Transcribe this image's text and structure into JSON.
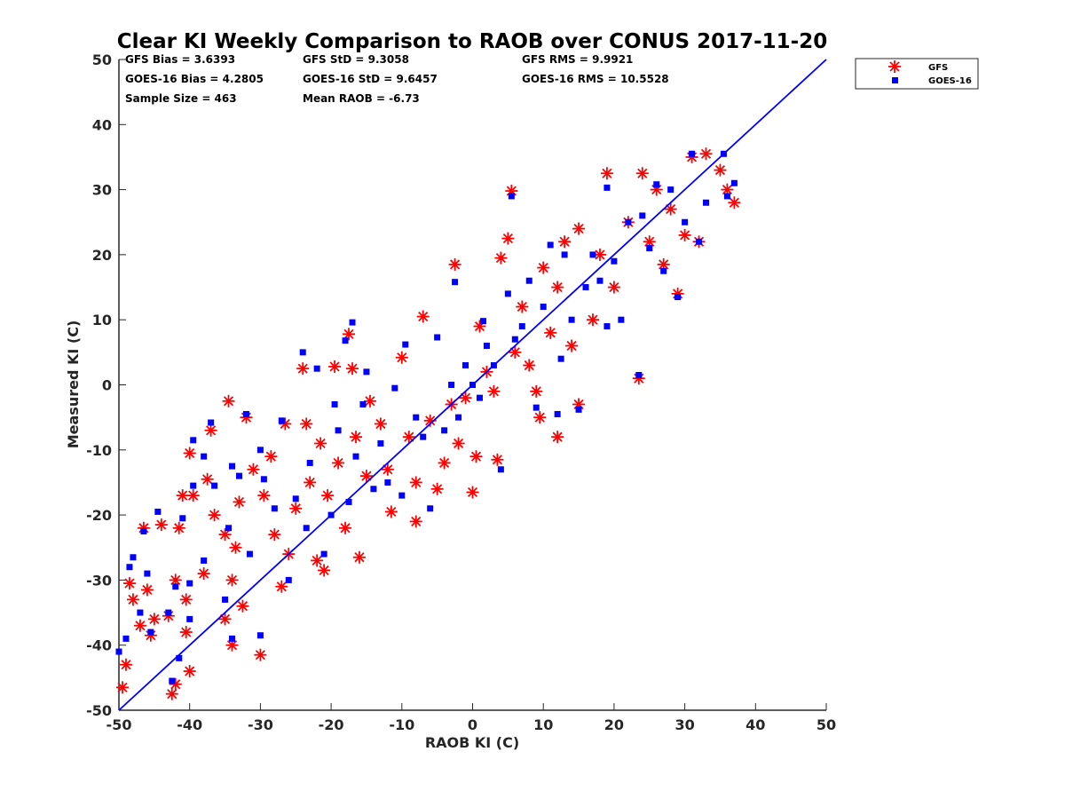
{
  "chart_data": {
    "type": "scatter",
    "title": "Clear KI Weekly Comparison to RAOB over CONUS 2017-11-20",
    "xlabel": "RAOB KI (C)",
    "ylabel": "Measured KI (C)",
    "xlim": [
      -50,
      50
    ],
    "ylim": [
      -50,
      50
    ],
    "xticks": [
      "-50",
      "-40",
      "-30",
      "-20",
      "-10",
      "0",
      "10",
      "20",
      "30",
      "40",
      "50"
    ],
    "yticks": [
      "-50",
      "-40",
      "-30",
      "-20",
      "-10",
      "0",
      "10",
      "20",
      "30",
      "40",
      "50"
    ],
    "grid": false,
    "legend_position": "top-right",
    "reference_line": {
      "label": "1:1",
      "color": "#0000ff"
    },
    "stats": [
      "GFS Bias = 3.6393",
      "GFS StD = 9.3058",
      "GFS RMS = 9.9921",
      "GOES-16 Bias = 4.2805",
      "GOES-16 StD = 9.6457",
      "GOES-16 RMS = 10.5528",
      "Sample Size = 463",
      "Mean RAOB = -6.73"
    ],
    "series": [
      {
        "name": "GFS",
        "color": "#ff0000",
        "marker": "asterisk",
        "points": [
          [
            -49.5,
            -46.5
          ],
          [
            -49,
            -43
          ],
          [
            -48.5,
            -30.5
          ],
          [
            -48,
            -33
          ],
          [
            -47,
            -37
          ],
          [
            -46.5,
            -22
          ],
          [
            -46,
            -31.5
          ],
          [
            -45.5,
            -38.5
          ],
          [
            -45,
            -36
          ],
          [
            -44,
            -21.5
          ],
          [
            -43,
            -35.5
          ],
          [
            -42.5,
            -47.5
          ],
          [
            -42,
            -46
          ],
          [
            -42,
            -30
          ],
          [
            -41.5,
            -22
          ],
          [
            -41,
            -17
          ],
          [
            -40.5,
            -33
          ],
          [
            -40.5,
            -38
          ],
          [
            -40,
            -44
          ],
          [
            -40,
            -10.5
          ],
          [
            -39.5,
            -17
          ],
          [
            -38,
            -29
          ],
          [
            -37.5,
            -14.5
          ],
          [
            -37,
            -7
          ],
          [
            -36.5,
            -20
          ],
          [
            -35,
            -36
          ],
          [
            -35,
            -23
          ],
          [
            -34.5,
            -2.5
          ],
          [
            -34,
            -40
          ],
          [
            -34,
            -30
          ],
          [
            -33.5,
            -25
          ],
          [
            -33,
            -18
          ],
          [
            -32.5,
            -34
          ],
          [
            -32,
            -5
          ],
          [
            -31,
            -13
          ],
          [
            -30,
            -41.5
          ],
          [
            -29.5,
            -17
          ],
          [
            -28.5,
            -11
          ],
          [
            -28,
            -23
          ],
          [
            -27,
            -31
          ],
          [
            -26.5,
            -6
          ],
          [
            -26,
            -26
          ],
          [
            -25,
            -19
          ],
          [
            -24,
            2.5
          ],
          [
            -23.5,
            -6
          ],
          [
            -23,
            -15
          ],
          [
            -22,
            -27
          ],
          [
            -21.5,
            -9
          ],
          [
            -21,
            -28.5
          ],
          [
            -20.5,
            -17
          ],
          [
            -19.5,
            2.8
          ],
          [
            -19,
            -12
          ],
          [
            -18,
            -22
          ],
          [
            -17.5,
            7.8
          ],
          [
            -17,
            2.5
          ],
          [
            -16.5,
            -8
          ],
          [
            -16,
            -26.5
          ],
          [
            -15,
            -14
          ],
          [
            -14.5,
            -2.5
          ],
          [
            -13,
            -6
          ],
          [
            -12,
            -13
          ],
          [
            -11.5,
            -19.5
          ],
          [
            -10,
            4.2
          ],
          [
            -9,
            -8
          ],
          [
            -8,
            -15
          ],
          [
            -8,
            -21
          ],
          [
            -7,
            10.5
          ],
          [
            -6,
            -5.5
          ],
          [
            -5,
            -16
          ],
          [
            -4,
            -12
          ],
          [
            -3,
            -3
          ],
          [
            -2.5,
            18.5
          ],
          [
            -2,
            -9
          ],
          [
            -1,
            -2
          ],
          [
            0,
            -16.5
          ],
          [
            0.5,
            -11
          ],
          [
            1,
            9
          ],
          [
            2,
            2
          ],
          [
            3,
            -1
          ],
          [
            3.5,
            -11.5
          ],
          [
            4,
            19.5
          ],
          [
            5,
            22.5
          ],
          [
            5.5,
            29.8
          ],
          [
            6,
            5
          ],
          [
            7,
            12
          ],
          [
            8,
            3
          ],
          [
            9,
            -1
          ],
          [
            9.5,
            -5
          ],
          [
            10,
            18
          ],
          [
            11,
            8
          ],
          [
            12,
            -8
          ],
          [
            12,
            15
          ],
          [
            13,
            22
          ],
          [
            14,
            6
          ],
          [
            15,
            -3
          ],
          [
            15,
            24
          ],
          [
            17,
            10
          ],
          [
            18,
            20
          ],
          [
            19,
            32.5
          ],
          [
            20,
            15
          ],
          [
            22,
            25
          ],
          [
            23.5,
            1
          ],
          [
            24,
            32.5
          ],
          [
            25,
            22
          ],
          [
            26,
            30
          ],
          [
            27,
            18.5
          ],
          [
            28,
            27
          ],
          [
            29,
            14
          ],
          [
            30,
            23
          ],
          [
            31,
            35
          ],
          [
            32,
            22
          ],
          [
            33,
            35.5
          ],
          [
            35,
            33
          ],
          [
            36,
            30
          ],
          [
            37,
            28
          ]
        ]
      },
      {
        "name": "GOES-16",
        "color": "#0000ff",
        "marker": "square",
        "points": [
          [
            -50,
            -41
          ],
          [
            -49,
            -39
          ],
          [
            -48.5,
            -28
          ],
          [
            -48,
            -26.5
          ],
          [
            -47,
            -35
          ],
          [
            -46.5,
            -22.5
          ],
          [
            -46,
            -29
          ],
          [
            -45.5,
            -38
          ],
          [
            -44.5,
            -19.5
          ],
          [
            -43,
            -35
          ],
          [
            -42.5,
            -45.5
          ],
          [
            -42,
            -31
          ],
          [
            -41.5,
            -42
          ],
          [
            -41,
            -20.5
          ],
          [
            -40,
            -36
          ],
          [
            -40,
            -30.5
          ],
          [
            -39.5,
            -8.5
          ],
          [
            -39.5,
            -15.5
          ],
          [
            -38,
            -27
          ],
          [
            -38,
            -11
          ],
          [
            -37,
            -5.8
          ],
          [
            -36.5,
            -15.5
          ],
          [
            -35,
            -33
          ],
          [
            -34.5,
            -22
          ],
          [
            -34,
            -39
          ],
          [
            -34,
            -12.5
          ],
          [
            -33,
            -14
          ],
          [
            -32,
            -4.5
          ],
          [
            -31.5,
            -26
          ],
          [
            -30,
            -38.5
          ],
          [
            -30,
            -10
          ],
          [
            -29.5,
            -14.5
          ],
          [
            -28,
            -19
          ],
          [
            -27,
            -5.5
          ],
          [
            -26,
            -30
          ],
          [
            -25,
            -17.5
          ],
          [
            -24,
            5
          ],
          [
            -23.5,
            -22
          ],
          [
            -23,
            -12
          ],
          [
            -22,
            2.5
          ],
          [
            -21,
            -26
          ],
          [
            -20,
            -20
          ],
          [
            -19.5,
            -3
          ],
          [
            -19,
            -7
          ],
          [
            -18,
            6.8
          ],
          [
            -17.5,
            -18
          ],
          [
            -17,
            9.6
          ],
          [
            -16.5,
            -11
          ],
          [
            -15.5,
            -3
          ],
          [
            -15,
            2
          ],
          [
            -14,
            -16
          ],
          [
            -13,
            -9
          ],
          [
            -12,
            -15
          ],
          [
            -11,
            -0.5
          ],
          [
            -10,
            -17
          ],
          [
            -9.5,
            6.2
          ],
          [
            -8,
            -5
          ],
          [
            -7,
            -8
          ],
          [
            -6,
            -19
          ],
          [
            -5,
            7.3
          ],
          [
            -4,
            -7
          ],
          [
            -3,
            0
          ],
          [
            -2.5,
            15.8
          ],
          [
            -2,
            -5
          ],
          [
            -1,
            3
          ],
          [
            0,
            0
          ],
          [
            1,
            -2
          ],
          [
            1.5,
            9.8
          ],
          [
            2,
            6
          ],
          [
            3,
            3
          ],
          [
            4,
            -13
          ],
          [
            5,
            14
          ],
          [
            5.5,
            29
          ],
          [
            6,
            7
          ],
          [
            7,
            9
          ],
          [
            8,
            16
          ],
          [
            9,
            -3.5
          ],
          [
            10,
            12
          ],
          [
            11,
            21.5
          ],
          [
            12,
            -4.5
          ],
          [
            12.5,
            4
          ],
          [
            13,
            20
          ],
          [
            14,
            10
          ],
          [
            15,
            -3.8
          ],
          [
            16,
            15
          ],
          [
            17,
            20
          ],
          [
            18,
            16
          ],
          [
            19,
            9
          ],
          [
            19,
            30.3
          ],
          [
            20,
            19
          ],
          [
            21,
            10
          ],
          [
            22,
            25
          ],
          [
            23.5,
            1.5
          ],
          [
            24,
            26
          ],
          [
            25,
            21
          ],
          [
            26,
            30.8
          ],
          [
            27,
            17.5
          ],
          [
            28,
            30
          ],
          [
            29,
            13.5
          ],
          [
            30,
            25
          ],
          [
            31,
            35.5
          ],
          [
            32,
            22
          ],
          [
            33,
            28
          ],
          [
            35.5,
            35.5
          ],
          [
            36,
            29
          ],
          [
            37,
            31
          ]
        ]
      }
    ]
  }
}
